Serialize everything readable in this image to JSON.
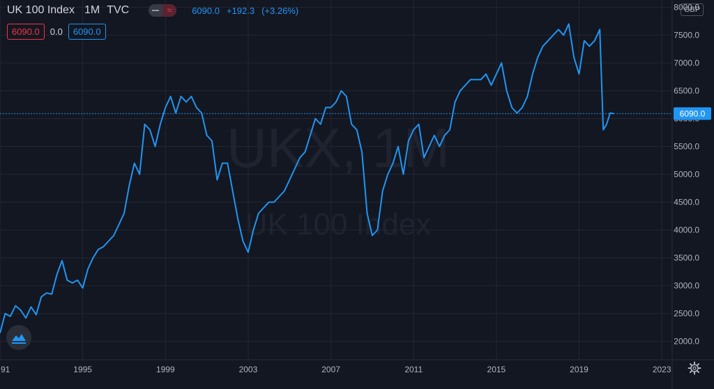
{
  "legend": {
    "title": "UK 100 Index",
    "interval": "1M",
    "source": "TVC",
    "last": "6090.0",
    "change": "+192.3",
    "change_pct": "(+3.26%)"
  },
  "price_boxes": {
    "sell": "6090.0",
    "spread": "0.0",
    "buy": "6090.0"
  },
  "currency": "GBP",
  "watermark": {
    "symbol": "UKX, 1M",
    "name": "UK 100 Index"
  },
  "last_price_label": "6090.0",
  "colors": {
    "background": "#131722",
    "line": "#2196f3",
    "grid": "#242733",
    "axis_text": "#b2b5be",
    "sell": "#f23645"
  },
  "icons": [
    "chart-logo-icon",
    "settings-gear-icon"
  ],
  "chart_data": {
    "type": "line",
    "title": "UK 100 Index",
    "xlabel": "",
    "ylabel": "",
    "xlim": [
      1991,
      2023.5
    ],
    "ylim": [
      1670,
      8130
    ],
    "x_ticks": [
      "91",
      "1995",
      "1999",
      "2003",
      "2007",
      "2011",
      "2015",
      "2019",
      "2023"
    ],
    "y_ticks": [
      "2000.0",
      "2500.0",
      "3000.0",
      "3500.0",
      "4000.0",
      "4500.0",
      "5000.0",
      "5500.0",
      "6000.0",
      "6500.0",
      "7000.0",
      "7500.0",
      "8000.0"
    ],
    "grid": true,
    "series": [
      {
        "name": "",
        "x": [
          1991.0,
          1991.25,
          1991.5,
          1991.75,
          1992.0,
          1992.25,
          1992.5,
          1992.75,
          1993.0,
          1993.25,
          1993.5,
          1993.75,
          1994.0,
          1994.25,
          1994.5,
          1994.75,
          1995.0,
          1995.25,
          1995.5,
          1995.75,
          1996.0,
          1996.25,
          1996.5,
          1996.75,
          1997.0,
          1997.25,
          1997.5,
          1997.75,
          1998.0,
          1998.25,
          1998.5,
          1998.75,
          1999.0,
          1999.25,
          1999.5,
          1999.75,
          2000.0,
          2000.25,
          2000.5,
          2000.75,
          2001.0,
          2001.25,
          2001.5,
          2001.75,
          2002.0,
          2002.25,
          2002.5,
          2002.75,
          2003.0,
          2003.25,
          2003.5,
          2003.75,
          2004.0,
          2004.25,
          2004.5,
          2004.75,
          2005.0,
          2005.25,
          2005.5,
          2005.75,
          2006.0,
          2006.25,
          2006.5,
          2006.75,
          2007.0,
          2007.25,
          2007.5,
          2007.75,
          2008.0,
          2008.25,
          2008.5,
          2008.75,
          2009.0,
          2009.25,
          2009.5,
          2009.75,
          2010.0,
          2010.25,
          2010.5,
          2010.75,
          2011.0,
          2011.25,
          2011.5,
          2011.75,
          2012.0,
          2012.25,
          2012.5,
          2012.75,
          2013.0,
          2013.25,
          2013.5,
          2013.75,
          2014.0,
          2014.25,
          2014.5,
          2014.75,
          2015.0,
          2015.25,
          2015.5,
          2015.75,
          2016.0,
          2016.25,
          2016.5,
          2016.75,
          2017.0,
          2017.25,
          2017.5,
          2017.75,
          2018.0,
          2018.25,
          2018.5,
          2018.75,
          2019.0,
          2019.25,
          2019.5,
          2019.75,
          2020.0,
          2020.17,
          2020.33,
          2020.5,
          2020.67
        ],
        "y": [
          2150,
          2500,
          2450,
          2640,
          2560,
          2420,
          2620,
          2480,
          2800,
          2870,
          2850,
          3200,
          3450,
          3100,
          3050,
          3100,
          2960,
          3300,
          3500,
          3650,
          3700,
          3800,
          3900,
          4100,
          4300,
          4800,
          5200,
          5000,
          5900,
          5800,
          5500,
          5900,
          6200,
          6400,
          6100,
          6400,
          6300,
          6400,
          6200,
          6100,
          5700,
          5600,
          4900,
          5200,
          5200,
          4700,
          4200,
          3800,
          3600,
          4000,
          4300,
          4400,
          4500,
          4500,
          4600,
          4700,
          4900,
          5100,
          5300,
          5400,
          5700,
          6000,
          5900,
          6200,
          6200,
          6300,
          6500,
          6400,
          5900,
          5800,
          5400,
          4300,
          3900,
          4000,
          4700,
          5000,
          5200,
          5500,
          5000,
          5600,
          5800,
          5900,
          5300,
          5500,
          5700,
          5500,
          5700,
          5800,
          6300,
          6500,
          6600,
          6700,
          6700,
          6700,
          6800,
          6600,
          6800,
          7000,
          6500,
          6200,
          6100,
          6200,
          6400,
          6800,
          7100,
          7300,
          7400,
          7500,
          7600,
          7500,
          7700,
          7100,
          6800,
          7400,
          7300,
          7400,
          7600,
          5800,
          5900,
          6100,
          6090
        ]
      }
    ]
  }
}
